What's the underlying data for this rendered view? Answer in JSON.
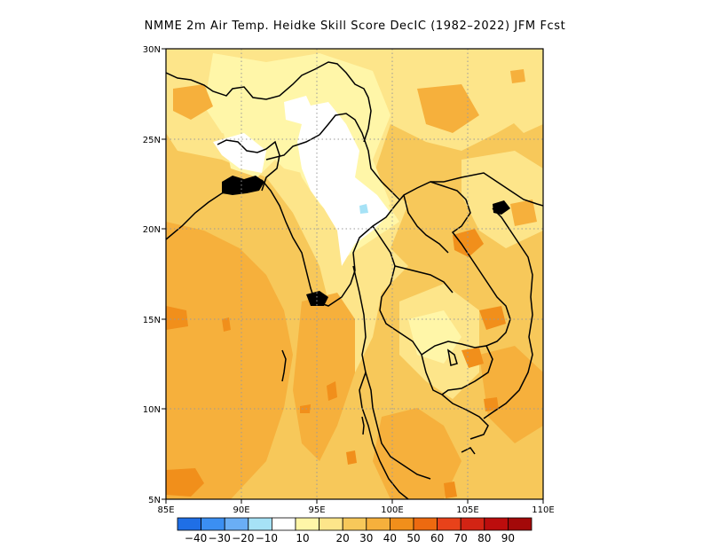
{
  "title": "NMME  2m Air Temp. Heidke Skill Score DecIC (1982–2022) JFM Fcst",
  "map": {
    "lon_ticks": [
      "85E",
      "90E",
      "95E",
      "100E",
      "105E",
      "110E"
    ],
    "lat_ticks": [
      "30N",
      "25N",
      "20N",
      "15N",
      "10N",
      "5N"
    ],
    "lon_range": [
      85,
      110
    ],
    "lat_range": [
      5,
      30
    ],
    "grid": "dotted"
  },
  "colorbar": {
    "colors": [
      "#1f6fe6",
      "#3b8ff2",
      "#6aaef5",
      "#a6e2f6",
      "#ffffff",
      "#fff6a8",
      "#fde58a",
      "#f7c85a",
      "#f6b03c",
      "#f18f1b",
      "#ed6a10",
      "#e8421a",
      "#d32414",
      "#bc0d0d",
      "#a30909"
    ],
    "labels": [
      "−40",
      "−30",
      "−20",
      "−10",
      "10",
      "20",
      "30",
      "40",
      "50",
      "60",
      "70",
      "80",
      "90"
    ]
  }
}
